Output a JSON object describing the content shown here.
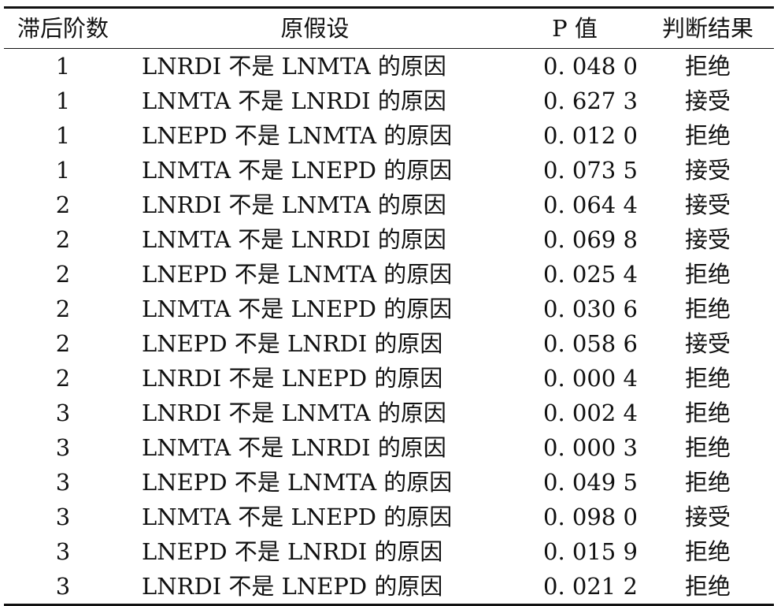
{
  "table": {
    "headers": [
      "滞后阶数",
      "原假设",
      "P 值",
      "判断结果"
    ],
    "rows": [
      {
        "lag": "1",
        "hypothesis": "LNRDI 不是 LNMTA 的原因",
        "p": "0. 048 0",
        "result": "拒绝"
      },
      {
        "lag": "1",
        "hypothesis": "LNMTA 不是 LNRDI 的原因",
        "p": "0. 627 3",
        "result": "接受"
      },
      {
        "lag": "1",
        "hypothesis": "LNEPD 不是 LNMTA 的原因",
        "p": "0. 012 0",
        "result": "拒绝"
      },
      {
        "lag": "1",
        "hypothesis": "LNMTA 不是 LNEPD 的原因",
        "p": "0. 073 5",
        "result": "接受"
      },
      {
        "lag": "2",
        "hypothesis": "LNRDI 不是 LNMTA 的原因",
        "p": "0. 064 4",
        "result": "接受"
      },
      {
        "lag": "2",
        "hypothesis": "LNMTA 不是 LNRDI 的原因",
        "p": "0. 069 8",
        "result": "接受"
      },
      {
        "lag": "2",
        "hypothesis": "LNEPD 不是 LNMTA 的原因",
        "p": "0. 025 4",
        "result": "拒绝"
      },
      {
        "lag": "2",
        "hypothesis": "LNMTA 不是 LNEPD 的原因",
        "p": "0. 030 6",
        "result": "拒绝"
      },
      {
        "lag": "2",
        "hypothesis": "LNEPD 不是 LNRDI 的原因",
        "p": "0. 058 6",
        "result": "接受"
      },
      {
        "lag": "2",
        "hypothesis": "LNRDI 不是 LNEPD 的原因",
        "p": "0. 000 4",
        "result": "拒绝"
      },
      {
        "lag": "3",
        "hypothesis": "LNRDI 不是 LNMTA 的原因",
        "p": "0. 002 4",
        "result": "拒绝"
      },
      {
        "lag": "3",
        "hypothesis": "LNMTA 不是 LNRDI 的原因",
        "p": "0. 000 3",
        "result": "拒绝"
      },
      {
        "lag": "3",
        "hypothesis": "LNEPD 不是 LNMTA 的原因",
        "p": "0. 049 5",
        "result": "拒绝"
      },
      {
        "lag": "3",
        "hypothesis": "LNMTA 不是 LNEPD 的原因",
        "p": "0. 098 0",
        "result": "接受"
      },
      {
        "lag": "3",
        "hypothesis": "LNEPD 不是 LNRDI 的原因",
        "p": "0. 015 9",
        "result": "拒绝"
      },
      {
        "lag": "3",
        "hypothesis": "LNRDI 不是 LNEPD 的原因",
        "p": "0. 021 2",
        "result": "拒绝"
      }
    ]
  }
}
